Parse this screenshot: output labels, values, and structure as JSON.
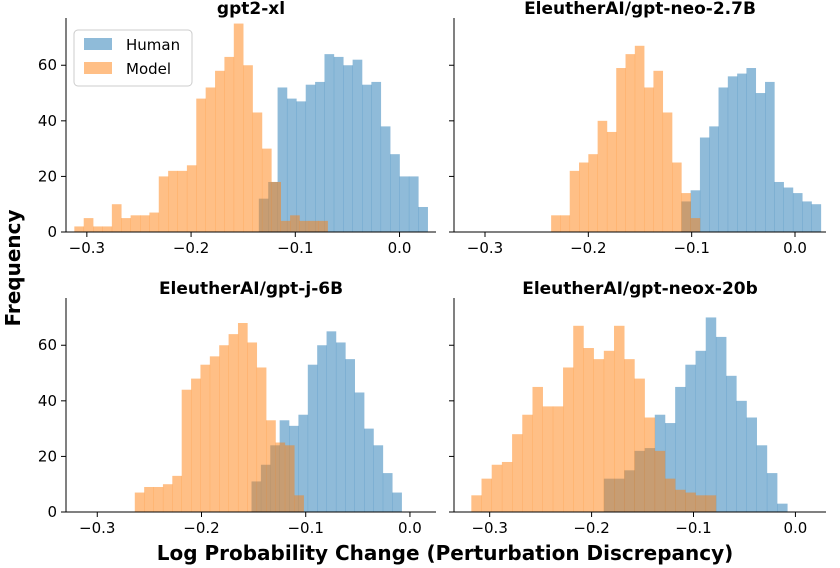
{
  "figure": {
    "xlabel": "Log Probability Change (Perturbation Discrepancy)",
    "ylabel": "Frequency"
  },
  "colors": {
    "human": "#1f77b4",
    "model": "#ff7f0e"
  },
  "legend": {
    "placement": "top-left of first panel",
    "entries": [
      "Human",
      "Model"
    ]
  },
  "chart_data": [
    {
      "type": "bar",
      "title": "gpt2-xl",
      "xlim": [
        -0.32,
        0.035
      ],
      "ylim": [
        0,
        77
      ],
      "xticks": [
        -0.3,
        -0.2,
        -0.1,
        0.0
      ],
      "xtick_labels": [
        "−0.3",
        "−0.2",
        "−0.1",
        "0.0"
      ],
      "yticks": [
        0,
        20,
        40,
        60
      ],
      "ytick_labels": [
        "0",
        "20",
        "40",
        "60"
      ],
      "series": [
        {
          "name": "Human",
          "bins": [
            [
              -0.135,
              -0.126,
              12
            ],
            [
              -0.126,
              -0.117,
              18
            ],
            [
              -0.117,
              -0.108,
              52
            ],
            [
              -0.108,
              -0.099,
              48
            ],
            [
              -0.099,
              -0.09,
              47
            ],
            [
              -0.09,
              -0.081,
              53
            ],
            [
              -0.081,
              -0.072,
              54
            ],
            [
              -0.072,
              -0.063,
              64
            ],
            [
              -0.063,
              -0.054,
              63
            ],
            [
              -0.054,
              -0.045,
              60
            ],
            [
              -0.045,
              -0.036,
              62
            ],
            [
              -0.036,
              -0.027,
              53
            ],
            [
              -0.027,
              -0.018,
              54
            ],
            [
              -0.018,
              -0.009,
              38
            ],
            [
              -0.009,
              0.0,
              28
            ],
            [
              0.0,
              0.009,
              20
            ],
            [
              0.009,
              0.018,
              20
            ],
            [
              0.018,
              0.027,
              9
            ]
          ]
        },
        {
          "name": "Model",
          "bins": [
            [
              -0.312,
              -0.303,
              2
            ],
            [
              -0.303,
              -0.294,
              5
            ],
            [
              -0.294,
              -0.285,
              2
            ],
            [
              -0.285,
              -0.276,
              2
            ],
            [
              -0.276,
              -0.267,
              10
            ],
            [
              -0.267,
              -0.258,
              5
            ],
            [
              -0.258,
              -0.249,
              6
            ],
            [
              -0.249,
              -0.24,
              6
            ],
            [
              -0.24,
              -0.231,
              7
            ],
            [
              -0.231,
              -0.222,
              20
            ],
            [
              -0.222,
              -0.213,
              22
            ],
            [
              -0.213,
              -0.204,
              22
            ],
            [
              -0.204,
              -0.195,
              24
            ],
            [
              -0.195,
              -0.186,
              48
            ],
            [
              -0.186,
              -0.177,
              52
            ],
            [
              -0.177,
              -0.168,
              58
            ],
            [
              -0.168,
              -0.159,
              63
            ],
            [
              -0.159,
              -0.15,
              75
            ],
            [
              -0.15,
              -0.141,
              60
            ],
            [
              -0.141,
              -0.132,
              43
            ],
            [
              -0.132,
              -0.123,
              30
            ],
            [
              -0.123,
              -0.114,
              18
            ],
            [
              -0.114,
              -0.105,
              4
            ],
            [
              -0.105,
              -0.096,
              6
            ],
            [
              -0.096,
              -0.087,
              4
            ],
            [
              -0.087,
              -0.078,
              4
            ],
            [
              -0.078,
              -0.069,
              4
            ]
          ]
        }
      ]
    },
    {
      "type": "bar",
      "title": "EleutherAI/gpt-neo-2.7B",
      "xlim": [
        -0.33,
        0.03
      ],
      "ylim": [
        0,
        77
      ],
      "xticks": [
        -0.3,
        -0.2,
        -0.1,
        0.0
      ],
      "xtick_labels": [
        "−0.3",
        "−0.2",
        "−0.1",
        "0.0"
      ],
      "yticks": [
        0,
        20,
        40,
        60
      ],
      "ytick_labels": [],
      "series": [
        {
          "name": "Human",
          "bins": [
            [
              -0.11,
              -0.101,
              11
            ],
            [
              -0.101,
              -0.092,
              15
            ],
            [
              -0.092,
              -0.083,
              34
            ],
            [
              -0.083,
              -0.074,
              38
            ],
            [
              -0.074,
              -0.065,
              52
            ],
            [
              -0.065,
              -0.056,
              56
            ],
            [
              -0.056,
              -0.047,
              57
            ],
            [
              -0.047,
              -0.038,
              59
            ],
            [
              -0.038,
              -0.029,
              50
            ],
            [
              -0.029,
              -0.02,
              54
            ],
            [
              -0.02,
              -0.011,
              18
            ],
            [
              -0.011,
              -0.002,
              16
            ],
            [
              -0.002,
              0.007,
              14
            ],
            [
              0.007,
              0.016,
              11
            ],
            [
              0.016,
              0.025,
              10
            ]
          ]
        },
        {
          "name": "Model",
          "bins": [
            [
              -0.236,
              -0.227,
              6
            ],
            [
              -0.227,
              -0.218,
              6
            ],
            [
              -0.218,
              -0.209,
              22
            ],
            [
              -0.209,
              -0.2,
              25
            ],
            [
              -0.2,
              -0.191,
              28
            ],
            [
              -0.191,
              -0.182,
              40
            ],
            [
              -0.182,
              -0.173,
              36
            ],
            [
              -0.173,
              -0.164,
              59
            ],
            [
              -0.164,
              -0.155,
              64
            ],
            [
              -0.155,
              -0.146,
              67
            ],
            [
              -0.146,
              -0.137,
              52
            ],
            [
              -0.137,
              -0.128,
              58
            ],
            [
              -0.128,
              -0.119,
              43
            ],
            [
              -0.119,
              -0.11,
              25
            ],
            [
              -0.11,
              -0.101,
              14
            ],
            [
              -0.101,
              -0.092,
              5
            ]
          ]
        }
      ]
    },
    {
      "type": "bar",
      "title": "EleutherAI/gpt-j-6B",
      "xlim": [
        -0.33,
        0.025
      ],
      "ylim": [
        0,
        77
      ],
      "xticks": [
        -0.3,
        -0.2,
        -0.1,
        0.0
      ],
      "xtick_labels": [
        "−0.3",
        "−0.2",
        "−0.1",
        "0.0"
      ],
      "yticks": [
        0,
        20,
        40,
        60
      ],
      "ytick_labels": [
        "0",
        "20",
        "40",
        "60"
      ],
      "series": [
        {
          "name": "Human",
          "bins": [
            [
              -0.152,
              -0.143,
              11
            ],
            [
              -0.143,
              -0.134,
              17
            ],
            [
              -0.134,
              -0.125,
              24
            ],
            [
              -0.125,
              -0.116,
              33
            ],
            [
              -0.116,
              -0.107,
              31
            ],
            [
              -0.107,
              -0.098,
              35
            ],
            [
              -0.098,
              -0.089,
              53
            ],
            [
              -0.089,
              -0.08,
              60
            ],
            [
              -0.08,
              -0.071,
              65
            ],
            [
              -0.071,
              -0.062,
              61
            ],
            [
              -0.062,
              -0.053,
              55
            ],
            [
              -0.053,
              -0.044,
              43
            ],
            [
              -0.044,
              -0.035,
              30
            ],
            [
              -0.035,
              -0.026,
              24
            ],
            [
              -0.026,
              -0.017,
              14
            ],
            [
              -0.017,
              -0.008,
              7
            ]
          ]
        },
        {
          "name": "Model",
          "bins": [
            [
              -0.264,
              -0.255,
              7
            ],
            [
              -0.255,
              -0.246,
              9
            ],
            [
              -0.246,
              -0.237,
              9
            ],
            [
              -0.237,
              -0.228,
              10
            ],
            [
              -0.228,
              -0.219,
              13
            ],
            [
              -0.219,
              -0.21,
              44
            ],
            [
              -0.21,
              -0.201,
              48
            ],
            [
              -0.201,
              -0.192,
              53
            ],
            [
              -0.192,
              -0.183,
              56
            ],
            [
              -0.183,
              -0.174,
              60
            ],
            [
              -0.174,
              -0.165,
              64
            ],
            [
              -0.165,
              -0.156,
              68
            ],
            [
              -0.156,
              -0.147,
              61
            ],
            [
              -0.147,
              -0.138,
              52
            ],
            [
              -0.138,
              -0.129,
              33
            ],
            [
              -0.129,
              -0.12,
              25
            ],
            [
              -0.12,
              -0.111,
              24
            ],
            [
              -0.111,
              -0.102,
              6
            ]
          ]
        }
      ]
    },
    {
      "type": "bar",
      "title": "EleutherAI/gpt-neox-20b",
      "xlim": [
        -0.335,
        0.03
      ],
      "ylim": [
        0,
        77
      ],
      "xticks": [
        -0.3,
        -0.2,
        -0.1,
        0.0
      ],
      "xtick_labels": [
        "−0.3",
        "−0.2",
        "−0.1",
        "0.0"
      ],
      "yticks": [
        0,
        20,
        40,
        60
      ],
      "ytick_labels": [],
      "series": [
        {
          "name": "Human",
          "bins": [
            [
              -0.188,
              -0.178,
              12
            ],
            [
              -0.178,
              -0.168,
              12
            ],
            [
              -0.168,
              -0.158,
              15
            ],
            [
              -0.158,
              -0.148,
              22
            ],
            [
              -0.148,
              -0.138,
              23
            ],
            [
              -0.138,
              -0.128,
              35
            ],
            [
              -0.128,
              -0.118,
              32
            ],
            [
              -0.118,
              -0.108,
              45
            ],
            [
              -0.108,
              -0.098,
              53
            ],
            [
              -0.098,
              -0.088,
              58
            ],
            [
              -0.088,
              -0.078,
              70
            ],
            [
              -0.078,
              -0.068,
              63
            ],
            [
              -0.068,
              -0.058,
              49
            ],
            [
              -0.058,
              -0.048,
              40
            ],
            [
              -0.048,
              -0.038,
              34
            ],
            [
              -0.038,
              -0.028,
              24
            ],
            [
              -0.028,
              -0.018,
              14
            ],
            [
              -0.018,
              -0.008,
              3
            ]
          ]
        },
        {
          "name": "Model",
          "bins": [
            [
              -0.318,
              -0.308,
              6
            ],
            [
              -0.308,
              -0.298,
              12
            ],
            [
              -0.298,
              -0.288,
              17
            ],
            [
              -0.288,
              -0.278,
              18
            ],
            [
              -0.278,
              -0.268,
              28
            ],
            [
              -0.268,
              -0.258,
              35
            ],
            [
              -0.258,
              -0.248,
              45
            ],
            [
              -0.248,
              -0.238,
              38
            ],
            [
              -0.238,
              -0.228,
              38
            ],
            [
              -0.228,
              -0.218,
              52
            ],
            [
              -0.218,
              -0.208,
              67
            ],
            [
              -0.208,
              -0.198,
              59
            ],
            [
              -0.198,
              -0.188,
              55
            ],
            [
              -0.188,
              -0.178,
              58
            ],
            [
              -0.178,
              -0.168,
              67
            ],
            [
              -0.168,
              -0.158,
              55
            ],
            [
              -0.158,
              -0.148,
              48
            ],
            [
              -0.148,
              -0.138,
              34
            ],
            [
              -0.138,
              -0.128,
              22
            ],
            [
              -0.128,
              -0.118,
              12
            ],
            [
              -0.118,
              -0.108,
              8
            ],
            [
              -0.108,
              -0.098,
              7
            ],
            [
              -0.098,
              -0.088,
              6
            ],
            [
              -0.088,
              -0.078,
              6
            ]
          ]
        }
      ]
    }
  ]
}
